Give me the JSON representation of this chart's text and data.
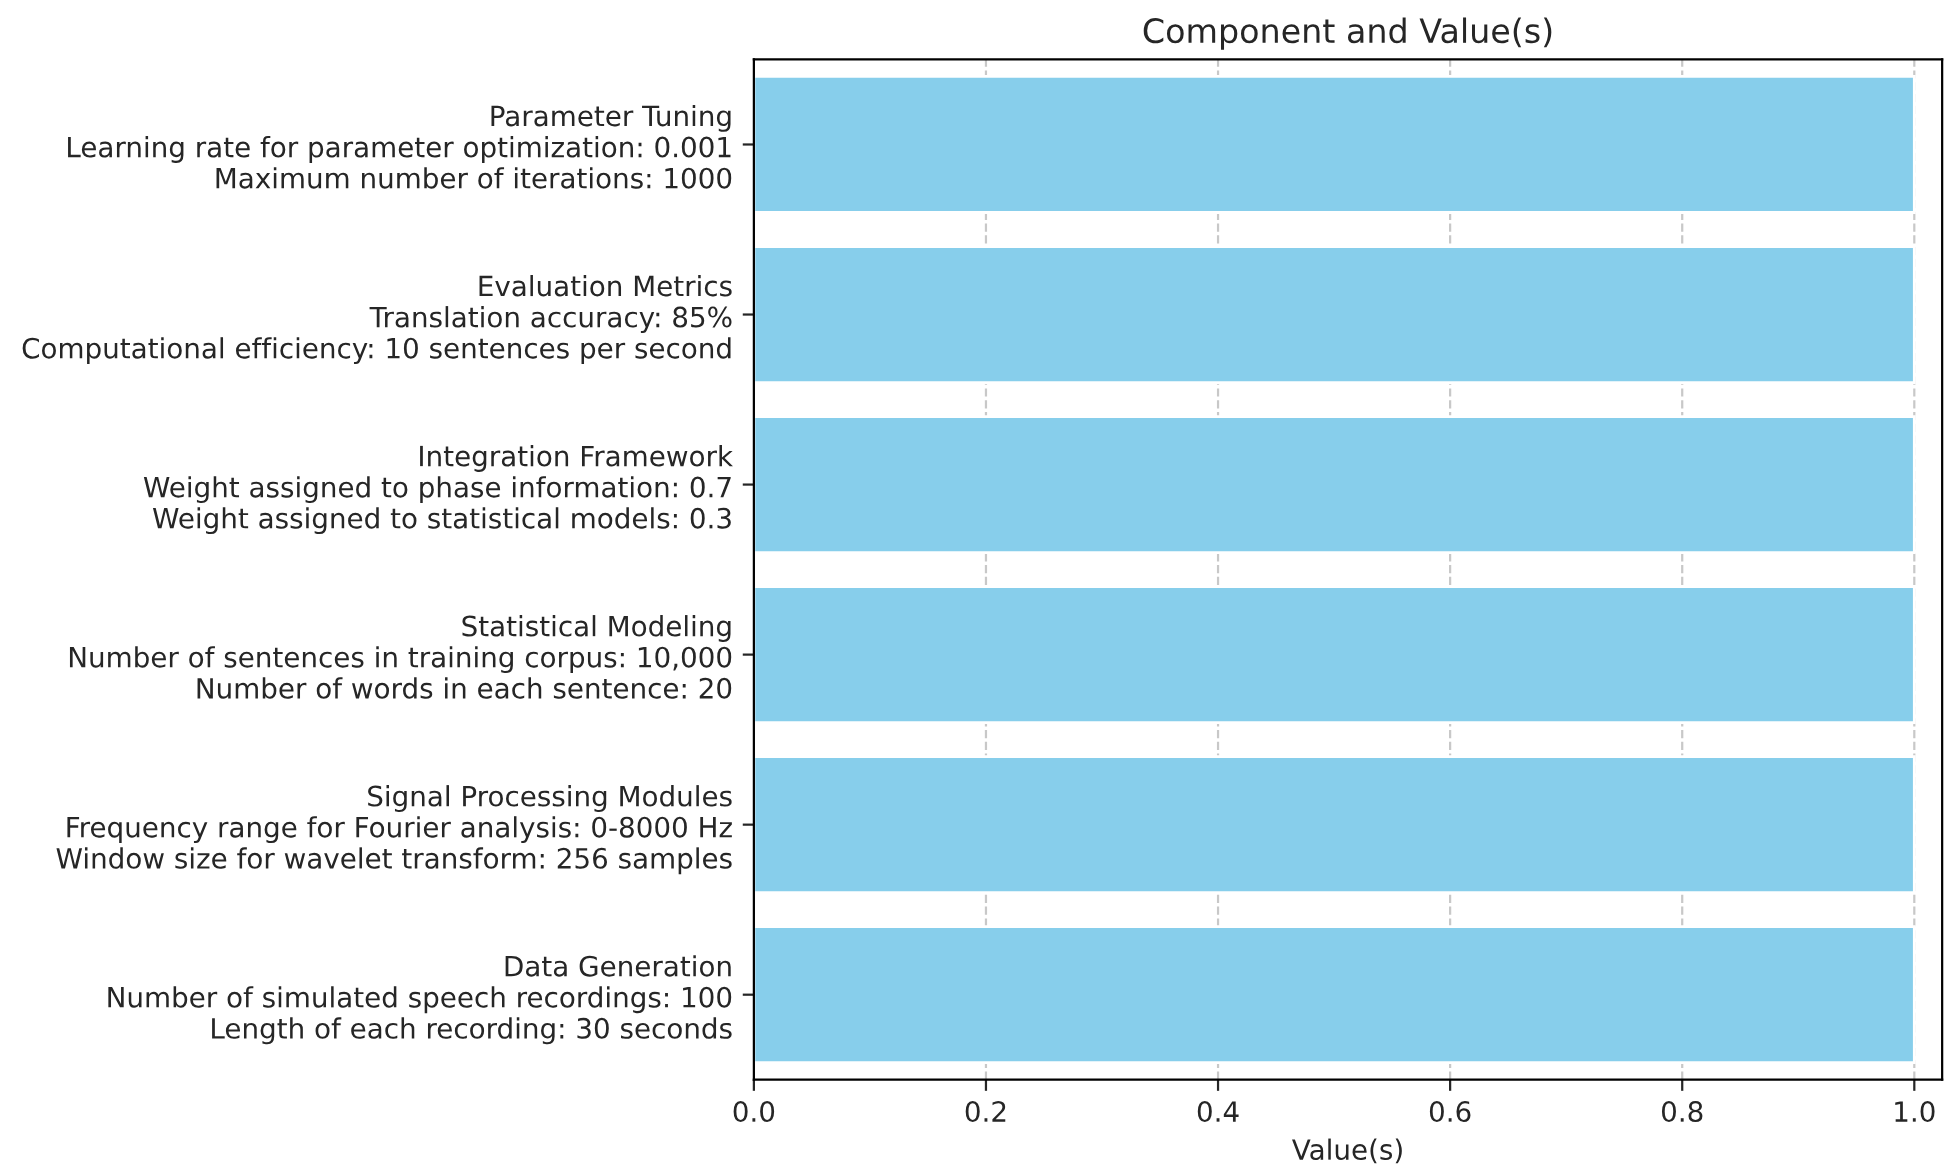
{
  "chart_data": {
    "type": "bar",
    "orientation": "horizontal",
    "title": "Component and Value(s)",
    "xlabel": "Value(s)",
    "categories": [
      "Parameter Tuning\nLearning rate for parameter optimization: 0.001\nMaximum number of iterations: 1000",
      "Evaluation Metrics\nTranslation accuracy: 85%\nComputational efficiency: 10 sentences per second",
      "Integration Framework\nWeight assigned to phase information: 0.7\nWeight assigned to statistical models: 0.3",
      "Statistical Modeling\nNumber of sentences in training corpus: 10,000\nNumber of words in each sentence: 20",
      "Signal Processing Modules\nFrequency range for Fourier analysis: 0-8000 Hz\nWindow size for wavelet transform: 256 samples",
      "Data Generation\nNumber of simulated speech recordings: 100\nLength of each recording: 30 seconds"
    ],
    "values": [
      1.0,
      1.0,
      1.0,
      1.0,
      1.0,
      1.0
    ],
    "color": "#87ceeb",
    "xlim": [
      0,
      1.024
    ],
    "xticks": [
      {
        "value": 0,
        "label": "0.0"
      },
      0.2,
      0.4,
      0.6,
      0.8,
      {
        "value": 1,
        "label": "1.0"
      }
    ],
    "grid": "x"
  }
}
